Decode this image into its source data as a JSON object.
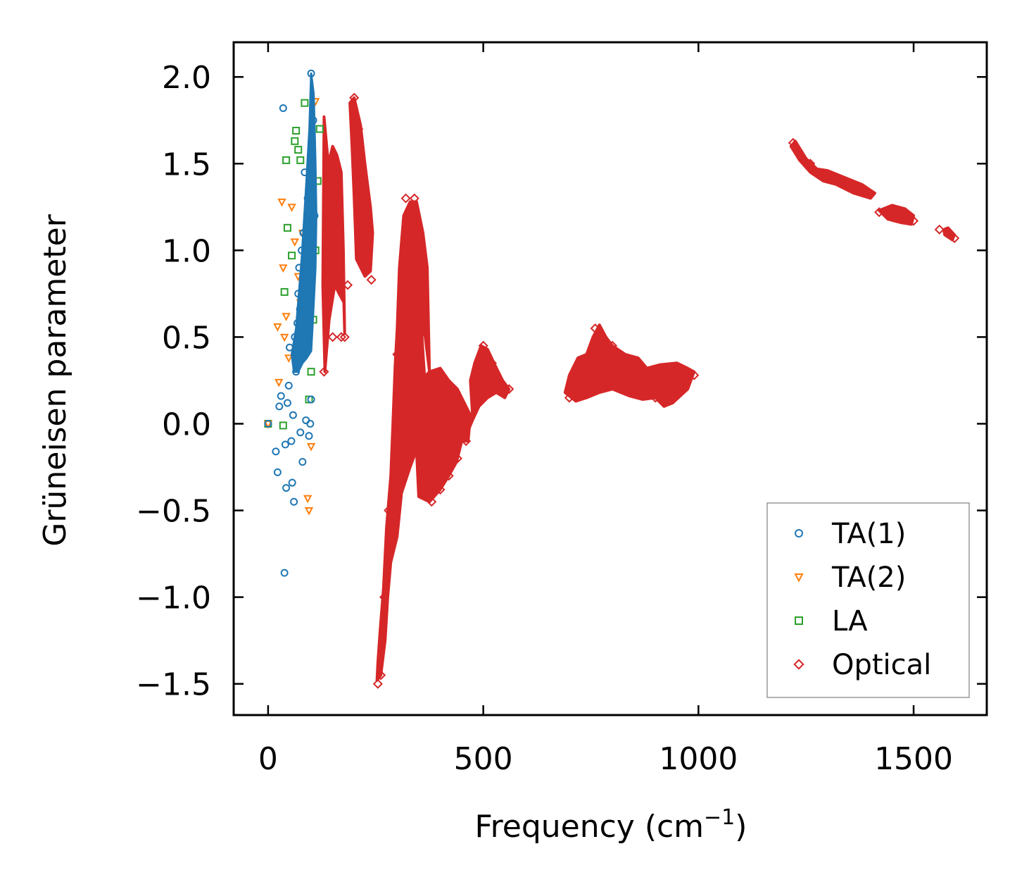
{
  "chart_data": {
    "type": "scatter",
    "title": "",
    "xlabel": "Frequency (cm",
    "xlabel_superscript": "−1",
    "xlabel_suffix": ")",
    "ylabel": "Grüneisen parameter",
    "xlim": [
      -80,
      1670
    ],
    "ylim": [
      -1.68,
      2.2
    ],
    "xticks": [
      0,
      500,
      1000,
      1500
    ],
    "xtick_labels": [
      "0",
      "500",
      "1000",
      "1500"
    ],
    "yticks": [
      -1.5,
      -1.0,
      -0.5,
      0.0,
      0.5,
      1.0,
      1.5,
      2.0
    ],
    "ytick_labels": [
      "−1.5",
      "−1.0",
      "−0.5",
      "0.0",
      "0.5",
      "1.0",
      "1.5",
      "2.0"
    ],
    "grid": false,
    "legend_position": "bottom-right",
    "series": [
      {
        "name": "TA(1)",
        "marker": "circle",
        "color": "#1f77b4",
        "points": [
          [
            0,
            0.0
          ],
          [
            18,
            -0.16
          ],
          [
            22,
            -0.28
          ],
          [
            26,
            0.1
          ],
          [
            30,
            0.16
          ],
          [
            35,
            1.82
          ],
          [
            38,
            -0.86
          ],
          [
            40,
            -0.12
          ],
          [
            42,
            -0.37
          ],
          [
            45,
            0.12
          ],
          [
            48,
            0.22
          ],
          [
            50,
            0.44
          ],
          [
            54,
            -0.1
          ],
          [
            56,
            -0.34
          ],
          [
            58,
            0.05
          ],
          [
            60,
            -0.45
          ],
          [
            62,
            0.5
          ],
          [
            65,
            0.3
          ],
          [
            68,
            0.58
          ],
          [
            70,
            0.75
          ],
          [
            72,
            0.9
          ],
          [
            74,
            0.66
          ],
          [
            75,
            -0.05
          ],
          [
            78,
            1.0
          ],
          [
            80,
            -0.22
          ],
          [
            82,
            1.1
          ],
          [
            84,
            0.4
          ],
          [
            85,
            1.45
          ],
          [
            88,
            0.02
          ],
          [
            90,
            0.96
          ],
          [
            92,
            1.3
          ],
          [
            95,
            -0.07
          ],
          [
            98,
            0.0
          ],
          [
            100,
            2.02
          ],
          [
            100,
            0.14
          ],
          [
            102,
            1.6
          ],
          [
            105,
            1.75
          ],
          [
            108,
            1.2
          ]
        ]
      },
      {
        "name": "TA(2)",
        "marker": "triangle_down",
        "color": "#ff7f0e",
        "points": [
          [
            0,
            0.0
          ],
          [
            22,
            0.56
          ],
          [
            25,
            0.24
          ],
          [
            32,
            1.28
          ],
          [
            35,
            0.9
          ],
          [
            38,
            0.5
          ],
          [
            42,
            0.62
          ],
          [
            48,
            0.38
          ],
          [
            55,
            1.25
          ],
          [
            62,
            1.05
          ],
          [
            70,
            0.85
          ],
          [
            75,
            0.7
          ],
          [
            80,
            1.1
          ],
          [
            88,
            0.5
          ],
          [
            92,
            -0.43
          ],
          [
            95,
            -0.5
          ],
          [
            100,
            -0.13
          ],
          [
            105,
            1.4
          ],
          [
            110,
            1.86
          ]
        ]
      },
      {
        "name": "LA",
        "marker": "square",
        "color": "#2ca02c",
        "points": [
          [
            0,
            0.0
          ],
          [
            35,
            -0.01
          ],
          [
            38,
            0.76
          ],
          [
            42,
            1.52
          ],
          [
            45,
            1.13
          ],
          [
            55,
            0.97
          ],
          [
            62,
            1.63
          ],
          [
            65,
            1.69
          ],
          [
            70,
            1.58
          ],
          [
            75,
            1.52
          ],
          [
            85,
            1.85
          ],
          [
            95,
            0.14
          ],
          [
            100,
            0.3
          ],
          [
            105,
            0.6
          ],
          [
            110,
            1.0
          ],
          [
            115,
            1.4
          ],
          [
            120,
            1.7
          ]
        ]
      },
      {
        "name": "Optical",
        "marker": "diamond",
        "color": "#d62728",
        "points": [
          [
            130,
            0.3
          ],
          [
            140,
            0.7
          ],
          [
            150,
            0.5
          ],
          [
            160,
            0.82
          ],
          [
            170,
            0.5
          ],
          [
            178,
            0.5
          ],
          [
            185,
            0.8
          ],
          [
            200,
            1.88
          ],
          [
            210,
            1.7
          ],
          [
            220,
            1.3
          ],
          [
            230,
            0.9
          ],
          [
            240,
            0.83
          ],
          [
            255,
            -1.5
          ],
          [
            262,
            -1.45
          ],
          [
            270,
            -1.0
          ],
          [
            280,
            -0.5
          ],
          [
            300,
            0.4
          ],
          [
            320,
            1.3
          ],
          [
            340,
            1.3
          ],
          [
            360,
            0.2
          ],
          [
            380,
            -0.45
          ],
          [
            400,
            -0.38
          ],
          [
            420,
            -0.3
          ],
          [
            440,
            -0.2
          ],
          [
            460,
            -0.1
          ],
          [
            480,
            0.2
          ],
          [
            500,
            0.45
          ],
          [
            520,
            0.35
          ],
          [
            560,
            0.2
          ],
          [
            700,
            0.15
          ],
          [
            760,
            0.55
          ],
          [
            800,
            0.45
          ],
          [
            850,
            0.25
          ],
          [
            900,
            0.15
          ],
          [
            920,
            0.12
          ],
          [
            960,
            0.32
          ],
          [
            990,
            0.28
          ],
          [
            1220,
            1.62
          ],
          [
            1260,
            1.5
          ],
          [
            1300,
            1.43
          ],
          [
            1340,
            1.38
          ],
          [
            1380,
            1.34
          ],
          [
            1420,
            1.22
          ],
          [
            1460,
            1.22
          ],
          [
            1500,
            1.17
          ],
          [
            1560,
            1.12
          ],
          [
            1595,
            1.07
          ]
        ],
        "bands": [
          [
            [
              130,
              1.77
            ],
            [
              140,
              1.5
            ],
            [
              150,
              1.6
            ],
            [
              160,
              1.55
            ],
            [
              170,
              1.45
            ],
            [
              175,
              1.0
            ],
            [
              178,
              0.52
            ],
            [
              176,
              0.7
            ],
            [
              165,
              0.75
            ],
            [
              155,
              0.8
            ],
            [
              142,
              0.6
            ],
            [
              132,
              0.3
            ],
            [
              127,
              0.8
            ]
          ],
          [
            [
              190,
              1.85
            ],
            [
              200,
              1.88
            ],
            [
              215,
              1.72
            ],
            [
              225,
              1.5
            ],
            [
              238,
              1.25
            ],
            [
              243,
              1.1
            ],
            [
              238,
              0.88
            ],
            [
              225,
              0.85
            ],
            [
              205,
              0.95
            ],
            [
              200,
              1.3
            ],
            [
              195,
              1.6
            ]
          ],
          [
            [
              253,
              -1.48
            ],
            [
              262,
              -1.45
            ],
            [
              272,
              -1.25
            ],
            [
              278,
              -1.0
            ],
            [
              285,
              -0.8
            ],
            [
              300,
              -0.65
            ],
            [
              310,
              -0.4
            ],
            [
              330,
              -0.25
            ],
            [
              345,
              -0.15
            ],
            [
              360,
              -0.25
            ],
            [
              378,
              -0.3
            ],
            [
              372,
              -0.05
            ],
            [
              355,
              0.6
            ],
            [
              365,
              0.5
            ],
            [
              375,
              0.3
            ],
            [
              370,
              0.9
            ],
            [
              360,
              1.1
            ],
            [
              345,
              1.28
            ],
            [
              330,
              1.28
            ],
            [
              315,
              1.2
            ],
            [
              305,
              0.9
            ],
            [
              300,
              0.55
            ],
            [
              295,
              0.33
            ],
            [
              290,
              0.0
            ],
            [
              285,
              -0.3
            ],
            [
              275,
              -0.6
            ],
            [
              268,
              -0.95
            ],
            [
              260,
              -1.2
            ],
            [
              255,
              -1.38
            ]
          ],
          [
            [
              340,
              0.1
            ],
            [
              350,
              -0.42
            ],
            [
              375,
              -0.45
            ],
            [
              400,
              -0.38
            ],
            [
              420,
              -0.3
            ],
            [
              438,
              -0.22
            ],
            [
              450,
              -0.1
            ],
            [
              465,
              -0.1
            ],
            [
              470,
              0.05
            ],
            [
              440,
              0.2
            ],
            [
              420,
              0.25
            ],
            [
              400,
              0.32
            ],
            [
              375,
              0.3
            ],
            [
              355,
              0.25
            ]
          ],
          [
            [
              455,
              -0.1
            ],
            [
              465,
              0.0
            ],
            [
              475,
              0.05
            ],
            [
              470,
              0.25
            ],
            [
              480,
              0.35
            ],
            [
              495,
              0.45
            ],
            [
              510,
              0.43
            ],
            [
              525,
              0.35
            ],
            [
              545,
              0.25
            ],
            [
              560,
              0.2
            ],
            [
              550,
              0.15
            ],
            [
              530,
              0.18
            ],
            [
              510,
              0.15
            ],
            [
              490,
              0.1
            ],
            [
              475,
              0.02
            ]
          ],
          [
            [
              690,
              0.18
            ],
            [
              700,
              0.28
            ],
            [
              720,
              0.38
            ],
            [
              740,
              0.4
            ],
            [
              755,
              0.5
            ],
            [
              770,
              0.57
            ],
            [
              785,
              0.5
            ],
            [
              800,
              0.45
            ],
            [
              830,
              0.4
            ],
            [
              860,
              0.38
            ],
            [
              880,
              0.32
            ],
            [
              910,
              0.34
            ],
            [
              950,
              0.35
            ],
            [
              975,
              0.32
            ],
            [
              990,
              0.3
            ],
            [
              975,
              0.2
            ],
            [
              940,
              0.12
            ],
            [
              920,
              0.1
            ],
            [
              900,
              0.15
            ],
            [
              870,
              0.14
            ],
            [
              840,
              0.16
            ],
            [
              800,
              0.2
            ],
            [
              770,
              0.18
            ],
            [
              740,
              0.15
            ],
            [
              715,
              0.13
            ]
          ],
          [
            [
              1215,
              1.6
            ],
            [
              1225,
              1.63
            ],
            [
              1250,
              1.53
            ],
            [
              1275,
              1.47
            ],
            [
              1300,
              1.46
            ],
            [
              1340,
              1.42
            ],
            [
              1380,
              1.38
            ],
            [
              1410,
              1.33
            ],
            [
              1400,
              1.3
            ],
            [
              1360,
              1.33
            ],
            [
              1320,
              1.38
            ],
            [
              1290,
              1.4
            ],
            [
              1260,
              1.45
            ],
            [
              1235,
              1.52
            ]
          ],
          [
            [
              1420,
              1.23
            ],
            [
              1450,
              1.26
            ],
            [
              1480,
              1.24
            ],
            [
              1500,
              1.2
            ],
            [
              1495,
              1.15
            ],
            [
              1470,
              1.16
            ],
            [
              1440,
              1.18
            ]
          ],
          [
            [
              1570,
              1.12
            ],
            [
              1580,
              1.13
            ],
            [
              1595,
              1.09
            ],
            [
              1590,
              1.06
            ],
            [
              1572,
              1.09
            ]
          ]
        ],
        "upper_bands_blue": [
          [
            [
              55,
              0.4
            ],
            [
              65,
              0.55
            ],
            [
              78,
              0.95
            ],
            [
              88,
              1.35
            ],
            [
              96,
              1.7
            ],
            [
              100,
              2.02
            ],
            [
              106,
              1.9
            ],
            [
              110,
              1.5
            ],
            [
              112,
              1.2
            ],
            [
              110,
              0.9
            ],
            [
              104,
              0.6
            ],
            [
              100,
              0.42
            ],
            [
              90,
              0.38
            ],
            [
              80,
              0.35
            ],
            [
              70,
              0.3
            ],
            [
              60,
              0.3
            ]
          ]
        ]
      }
    ]
  }
}
